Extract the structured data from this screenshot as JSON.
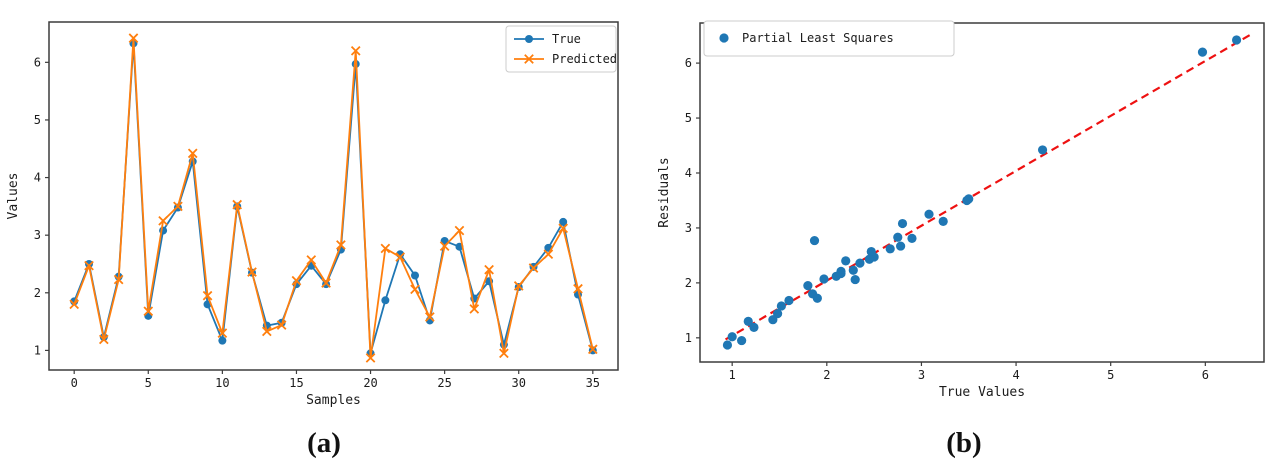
{
  "captions": {
    "a": "(a)",
    "b": "(b)"
  },
  "colors": {
    "true_series": "#1f77b4",
    "predicted_series": "#ff7f0e",
    "scatter": "#1f77b4",
    "fit_line": "#ee1111",
    "axis": "#3c3c3c",
    "legend_border": "#cccccc",
    "background": "#ffffff"
  },
  "chart_data": [
    {
      "id": "a",
      "type": "line",
      "title": "",
      "xlabel": "Samples",
      "ylabel": "Values",
      "grid": false,
      "x": [
        0,
        1,
        2,
        3,
        4,
        5,
        6,
        7,
        8,
        9,
        10,
        11,
        12,
        13,
        14,
        15,
        16,
        17,
        18,
        19,
        20,
        21,
        22,
        23,
        24,
        25,
        26,
        27,
        28,
        29,
        30,
        31,
        32,
        33,
        34,
        35
      ],
      "series": [
        {
          "name": "True",
          "marker": "circle",
          "color": "#1f77b4",
          "values": [
            1.85,
            2.5,
            1.23,
            2.28,
            6.33,
            1.6,
            3.08,
            3.48,
            4.28,
            1.8,
            1.17,
            3.5,
            2.35,
            1.43,
            1.48,
            2.15,
            2.47,
            2.15,
            2.75,
            5.97,
            0.95,
            1.87,
            2.67,
            2.3,
            1.52,
            2.9,
            2.8,
            1.9,
            2.2,
            1.1,
            2.1,
            2.45,
            2.78,
            3.23,
            1.97,
            1.0
          ]
        },
        {
          "name": "Predicted",
          "marker": "x",
          "color": "#ff7f0e",
          "values": [
            1.8,
            2.47,
            1.19,
            2.23,
            6.42,
            1.68,
            3.25,
            3.5,
            4.42,
            1.95,
            1.3,
            3.53,
            2.36,
            1.33,
            1.44,
            2.21,
            2.57,
            2.17,
            2.83,
            6.2,
            0.87,
            2.77,
            2.62,
            2.06,
            1.58,
            2.81,
            3.08,
            1.72,
            2.4,
            0.95,
            2.12,
            2.43,
            2.67,
            3.12,
            2.07,
            1.02
          ]
        }
      ],
      "xticks": [
        0,
        5,
        10,
        15,
        20,
        25,
        30,
        35
      ],
      "yticks": [
        1,
        2,
        3,
        4,
        5,
        6
      ],
      "xlim": [
        -1.7,
        36.7
      ],
      "ylim": [
        0.66,
        6.7
      ],
      "legend": {
        "position": "upper right",
        "items": [
          "True",
          "Predicted"
        ]
      }
    },
    {
      "id": "b",
      "type": "scatter",
      "title": "",
      "xlabel": "True Values",
      "ylabel": "Residuals",
      "grid": false,
      "legend": {
        "position": "upper left",
        "items": [
          "Partial Least Squares"
        ]
      },
      "legend_label": "Partial Least Squares",
      "marker_color": "#1f77b4",
      "points": [
        [
          1.85,
          1.8
        ],
        [
          2.5,
          2.47
        ],
        [
          1.23,
          1.19
        ],
        [
          2.28,
          2.23
        ],
        [
          6.33,
          6.42
        ],
        [
          1.6,
          1.68
        ],
        [
          3.08,
          3.25
        ],
        [
          3.48,
          3.5
        ],
        [
          4.28,
          4.42
        ],
        [
          1.8,
          1.95
        ],
        [
          1.17,
          1.3
        ],
        [
          3.5,
          3.53
        ],
        [
          2.35,
          2.36
        ],
        [
          1.43,
          1.33
        ],
        [
          1.48,
          1.44
        ],
        [
          2.15,
          2.21
        ],
        [
          2.47,
          2.57
        ],
        [
          2.15,
          2.17
        ],
        [
          2.75,
          2.83
        ],
        [
          5.97,
          6.2
        ],
        [
          0.95,
          0.87
        ],
        [
          1.87,
          2.77
        ],
        [
          2.67,
          2.62
        ],
        [
          2.3,
          2.06
        ],
        [
          1.52,
          1.58
        ],
        [
          2.9,
          2.81
        ],
        [
          2.8,
          3.08
        ],
        [
          1.9,
          1.72
        ],
        [
          2.2,
          2.4
        ],
        [
          1.1,
          0.95
        ],
        [
          2.1,
          2.12
        ],
        [
          2.45,
          2.43
        ],
        [
          2.78,
          2.67
        ],
        [
          3.23,
          3.12
        ],
        [
          1.97,
          2.07
        ],
        [
          1.0,
          1.02
        ]
      ],
      "fit_line": {
        "color": "#ee1111",
        "style": "dashed",
        "x": [
          0.93,
          6.48
        ],
        "y": [
          0.97,
          6.52
        ]
      },
      "xticks": [
        1,
        2,
        3,
        4,
        5,
        6
      ],
      "yticks": [
        1,
        2,
        3,
        4,
        5,
        6
      ],
      "xlim": [
        0.66,
        6.62
      ],
      "ylim": [
        0.56,
        6.73
      ]
    }
  ]
}
